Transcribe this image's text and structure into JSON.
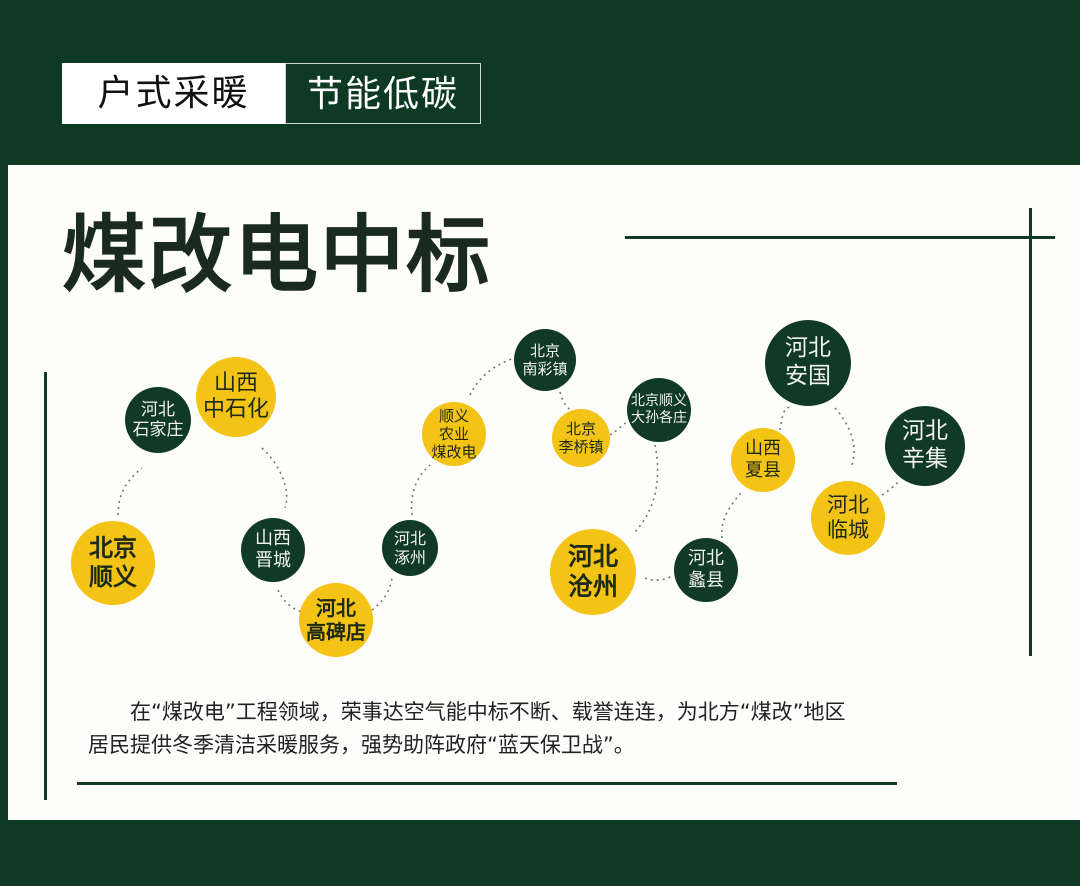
{
  "header": {
    "tag_left": "户式采暖",
    "tag_right": "节能低碳"
  },
  "title": "煤改电中标",
  "colors": {
    "dark_green": "#0e3a24",
    "yellow": "#f3c316",
    "white": "#fdfdfb"
  },
  "nodes": [
    {
      "label": "北京\n顺义",
      "color": "yellow"
    },
    {
      "label": "河北\n石家庄",
      "color": "dark"
    },
    {
      "label": "山西\n中石化",
      "color": "yellow"
    },
    {
      "label": "山西\n晋城",
      "color": "dark"
    },
    {
      "label": "河北\n高碑店",
      "color": "yellow"
    },
    {
      "label": "河北\n涿州",
      "color": "dark"
    },
    {
      "label": "顺义\n农业\n煤改电",
      "color": "yellow"
    },
    {
      "label": "北京\n南彩镇",
      "color": "dark"
    },
    {
      "label": "北京\n李桥镇",
      "color": "yellow"
    },
    {
      "label": "北京顺义\n大孙各庄",
      "color": "dark"
    },
    {
      "label": "河北\n沧州",
      "color": "yellow"
    },
    {
      "label": "河北\n蠡县",
      "color": "dark"
    },
    {
      "label": "山西\n夏县",
      "color": "yellow"
    },
    {
      "label": "河北\n安国",
      "color": "dark"
    },
    {
      "label": "河北\n临城",
      "color": "yellow"
    },
    {
      "label": "河北\n辛集",
      "color": "dark"
    }
  ],
  "paragraph": {
    "line1": "在“煤改电”工程领域，荣事达空气能中标不断、载誉连连，为北方“煤改”地区",
    "line2": "居民提供冬季清洁采暖服务，强势助阵政府“蓝天保卫战”。"
  }
}
